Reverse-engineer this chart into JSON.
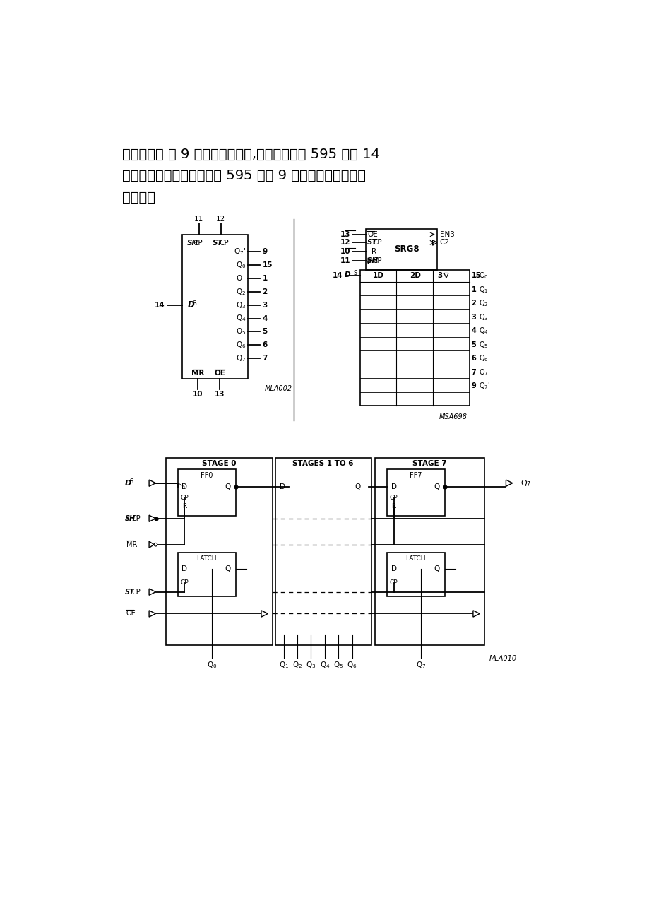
{
  "bg_color": "#ffffff",
  "title_lines": [
    "电平有效） 第 9 脚为信号输出脚,输出到下一个 595 的第 14",
    "脚；（单元板上的最后一个 595 的第 9 脚把红绿信号输出到",
    "排针上）"
  ]
}
